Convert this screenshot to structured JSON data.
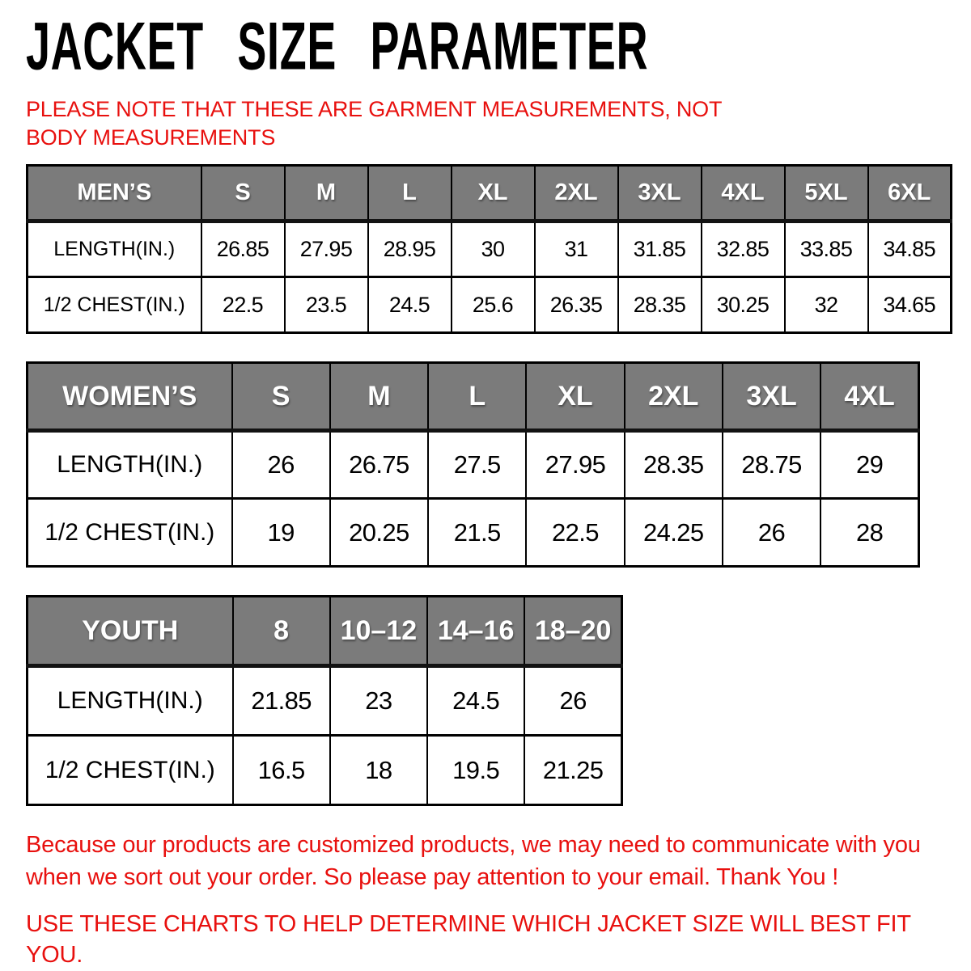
{
  "title": "JACKET SIZE PARAMETER",
  "note": "PLEASE NOTE THAT THESE ARE GARMENT MEASUREMENTS, NOT BODY MEASUREMENTS",
  "colors": {
    "header_background": "#7b7b7b",
    "accent_red": "#e8100e",
    "border": "#000000",
    "page_background": "#ffffff"
  },
  "tables": [
    {
      "id": "mens",
      "name": "MEN’S",
      "sizes": [
        "S",
        "M",
        "L",
        "XL",
        "2XL",
        "3XL",
        "4XL",
        "5XL",
        "6XL"
      ],
      "rows": [
        {
          "label": "LENGTH(IN.)",
          "values": [
            "26.85",
            "27.95",
            "28.95",
            "30",
            "31",
            "31.85",
            "32.85",
            "33.85",
            "34.85"
          ]
        },
        {
          "label": "1/2 CHEST(IN.)",
          "values": [
            "22.5",
            "23.5",
            "24.5",
            "25.6",
            "26.35",
            "28.35",
            "30.25",
            "32",
            "34.65"
          ]
        }
      ]
    },
    {
      "id": "womens",
      "name": "WOMEN’S",
      "sizes": [
        "S",
        "M",
        "L",
        "XL",
        "2XL",
        "3XL",
        "4XL"
      ],
      "rows": [
        {
          "label": "LENGTH(IN.)",
          "values": [
            "26",
            "26.75",
            "27.5",
            "27.95",
            "28.35",
            "28.75",
            "29"
          ]
        },
        {
          "label": "1/2 CHEST(IN.)",
          "values": [
            "19",
            "20.25",
            "21.5",
            "22.5",
            "24.25",
            "26",
            "28"
          ]
        }
      ]
    },
    {
      "id": "youth",
      "name": "YOUTH",
      "sizes": [
        "8",
        "10–12",
        "14–16",
        "18–20"
      ],
      "rows": [
        {
          "label": "LENGTH(IN.)",
          "values": [
            "21.85",
            "23",
            "24.5",
            "26"
          ]
        },
        {
          "label": "1/2 CHEST(IN.)",
          "values": [
            "16.5",
            "18",
            "19.5",
            "21.25"
          ]
        }
      ]
    }
  ],
  "footer": {
    "paragraph": "Because our products are customized products, we may need to communicate with you when we sort out your order. So please pay attention to your email. Thank You !",
    "usage_line": "USE THESE CHARTS TO HELP DETERMINE WHICH JACKET SIZE WILL BEST FIT YOU."
  }
}
